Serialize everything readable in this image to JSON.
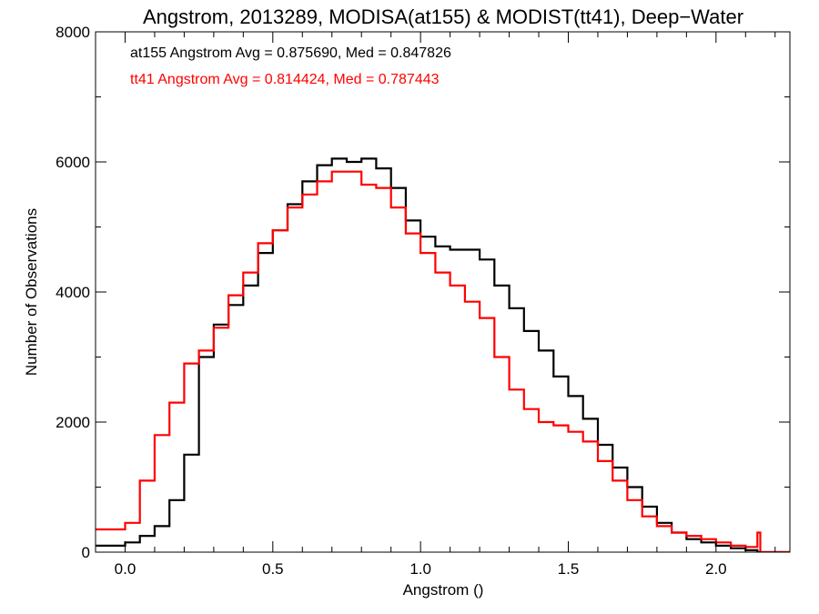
{
  "chart_data": {
    "type": "line",
    "title": "Angstrom, 2013289, MODISA(at155) & MODIST(tt41), Deep−Water",
    "xlabel": "Angstrom ()",
    "ylabel": "Number of Observations",
    "xlim": [
      -0.1,
      2.25
    ],
    "ylim": [
      0,
      8000
    ],
    "xticks": [
      0.0,
      0.5,
      1.0,
      1.5,
      2.0
    ],
    "xtick_labels": [
      "0.0",
      "0.5",
      "1.0",
      "1.5",
      "2.0"
    ],
    "yticks": [
      0,
      2000,
      4000,
      6000,
      8000
    ],
    "ytick_labels": [
      "0",
      "2000",
      "4000",
      "6000",
      "8000"
    ],
    "grid": false,
    "step": true,
    "annotations": [
      {
        "text": "at155 Angstrom Avg = 0.875690, Med = 0.847826",
        "color": "#000000"
      },
      {
        "text": "tt41 Angstrom Avg = 0.814424, Med = 0.787443",
        "color": "#ff0000"
      }
    ],
    "x": [
      -0.1,
      -0.05,
      0.0,
      0.05,
      0.1,
      0.15,
      0.2,
      0.25,
      0.3,
      0.35,
      0.4,
      0.45,
      0.5,
      0.55,
      0.6,
      0.65,
      0.7,
      0.75,
      0.8,
      0.85,
      0.9,
      0.95,
      1.0,
      1.05,
      1.1,
      1.15,
      1.2,
      1.25,
      1.3,
      1.35,
      1.4,
      1.45,
      1.5,
      1.55,
      1.6,
      1.65,
      1.7,
      1.75,
      1.8,
      1.85,
      1.9,
      1.95,
      2.0,
      2.05,
      2.1,
      2.14,
      2.15,
      2.2,
      2.25
    ],
    "series": [
      {
        "name": "at155",
        "color": "#000000",
        "values": [
          100,
          100,
          150,
          250,
          400,
          800,
          1500,
          3000,
          3500,
          3800,
          4100,
          4600,
          4950,
          5350,
          5700,
          5950,
          6050,
          6000,
          6050,
          5900,
          5600,
          5100,
          4850,
          4700,
          4650,
          4650,
          4500,
          4100,
          3750,
          3400,
          3100,
          2700,
          2400,
          2050,
          1650,
          1300,
          1000,
          700,
          450,
          300,
          200,
          150,
          100,
          60,
          30,
          0,
          0,
          0,
          0
        ]
      },
      {
        "name": "tt41",
        "color": "#ff0000",
        "values": [
          350,
          350,
          450,
          1100,
          1800,
          2300,
          2900,
          3100,
          3450,
          3950,
          4300,
          4750,
          4950,
          5300,
          5500,
          5700,
          5850,
          5850,
          5650,
          5600,
          5300,
          4900,
          4600,
          4300,
          4100,
          3850,
          3600,
          3000,
          2500,
          2200,
          2000,
          1950,
          1850,
          1700,
          1400,
          1100,
          800,
          550,
          400,
          300,
          250,
          200,
          150,
          100,
          80,
          300,
          0,
          0,
          0
        ]
      }
    ]
  }
}
